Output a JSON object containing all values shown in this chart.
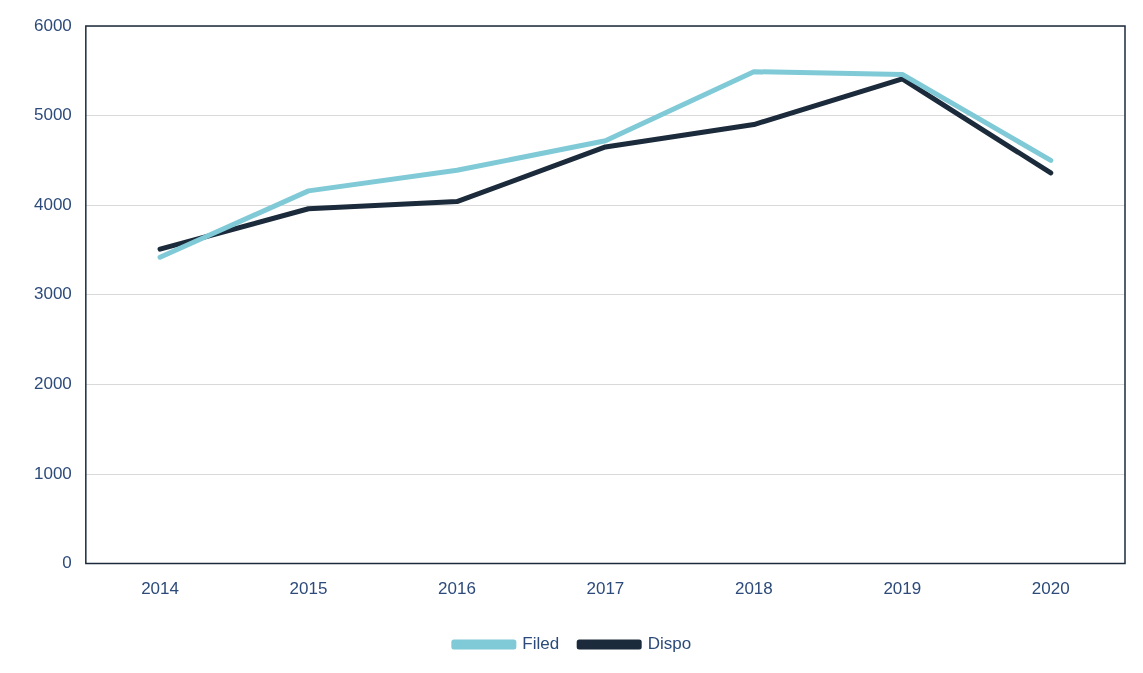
{
  "chart_data": {
    "type": "line",
    "categories": [
      "2014",
      "2015",
      "2016",
      "2017",
      "2018",
      "2019",
      "2020"
    ],
    "series": [
      {
        "name": "Filed",
        "color": "#7fcad6",
        "values": [
          3420,
          4160,
          4390,
          4720,
          5490,
          5460,
          4500
        ]
      },
      {
        "name": "Dispo",
        "color": "#1c2b3b",
        "values": [
          3510,
          3960,
          4040,
          4650,
          4900,
          5410,
          4360
        ]
      }
    ],
    "ylim": [
      0,
      6000
    ],
    "yticks": [
      0,
      1000,
      2000,
      3000,
      4000,
      5000,
      6000
    ],
    "grid": "y",
    "legend": "bottom",
    "marker": "none",
    "line_style": "solid"
  }
}
